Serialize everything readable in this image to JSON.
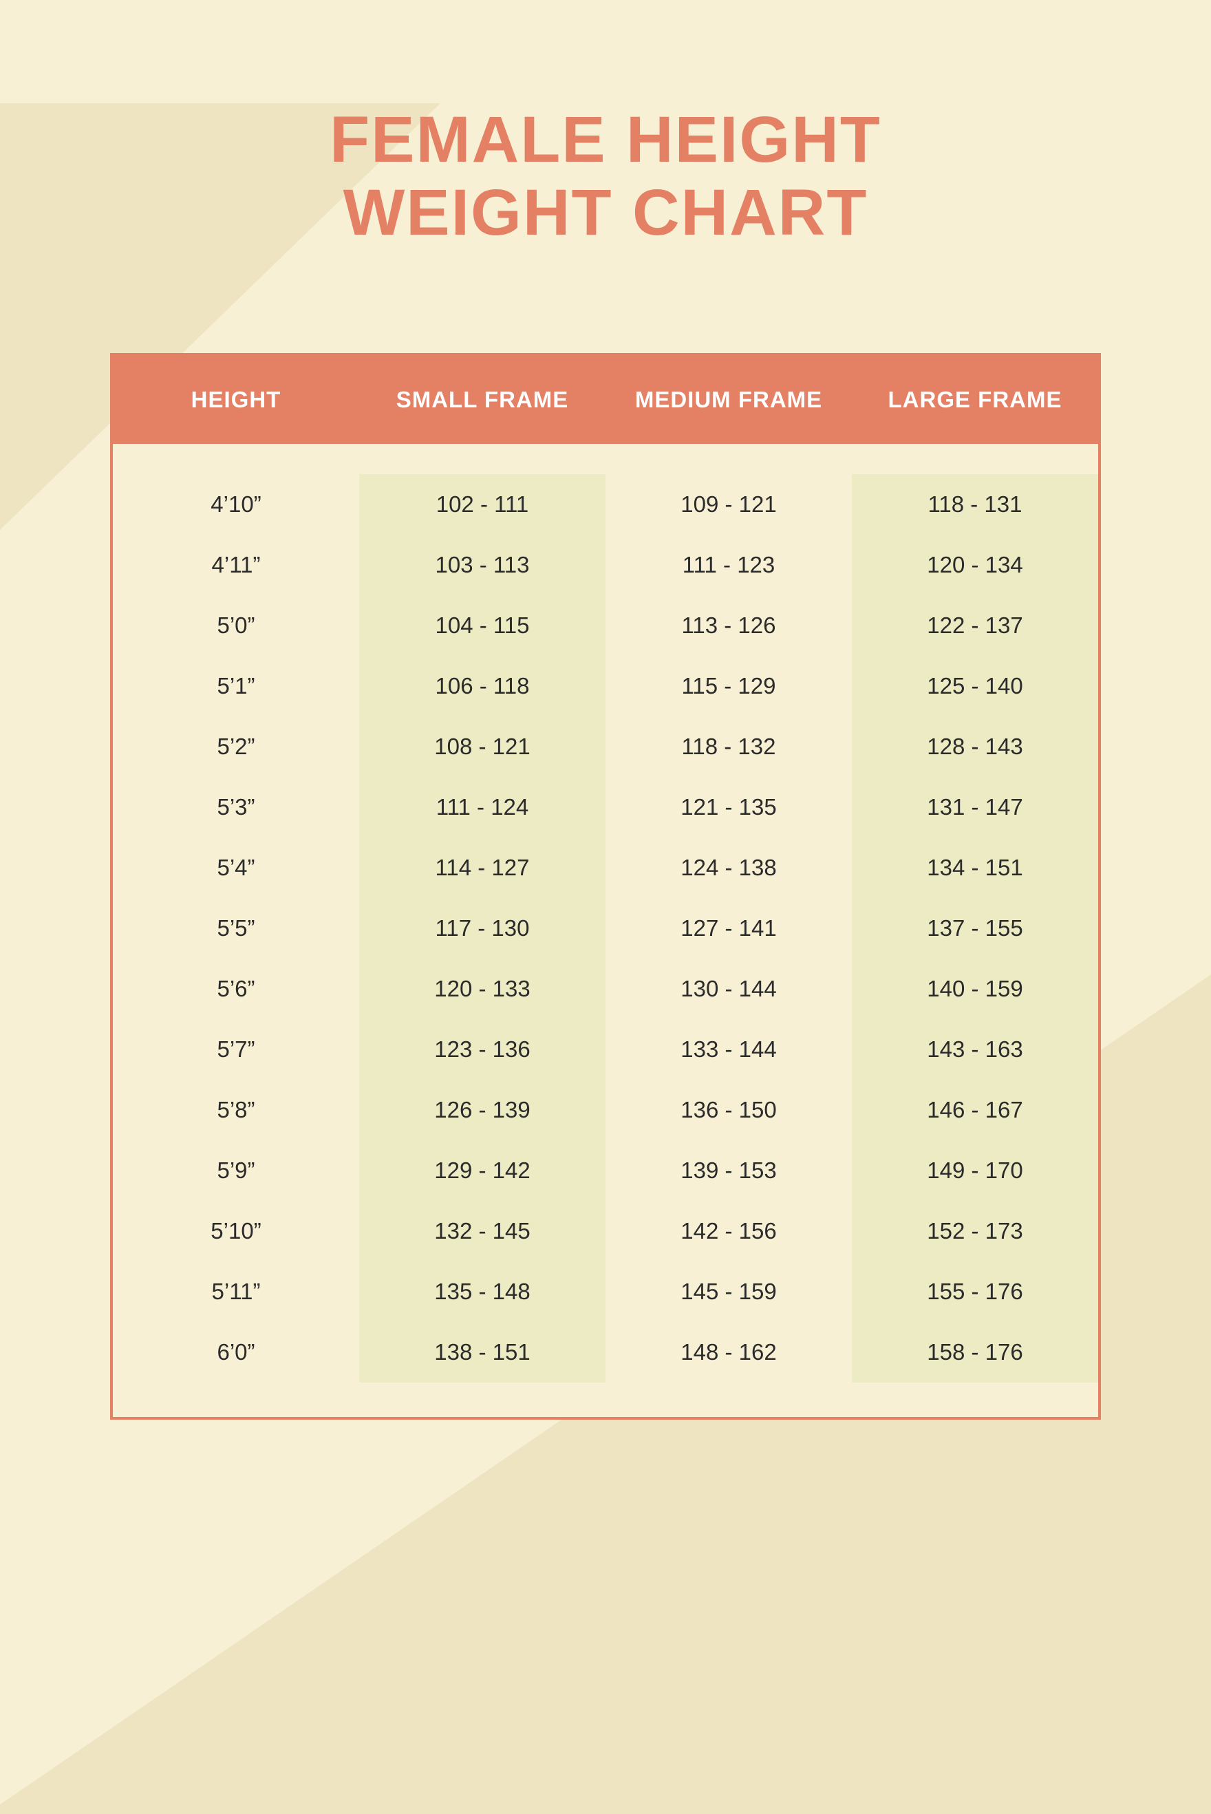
{
  "title_line1": "FEMALE HEIGHT",
  "title_line2": "WEIGHT CHART",
  "colors": {
    "page_bg": "#f7f0d4",
    "triangle_bg": "#eee4c1",
    "accent": "#e48165",
    "header_text": "#ffffff",
    "body_text": "#2b2b2b",
    "shade_col_bg": "#ecebc4"
  },
  "typography": {
    "title_fontsize": 95,
    "title_fontweight": 800,
    "header_fontsize": 33,
    "header_fontweight": 700,
    "body_fontsize": 33,
    "body_fontweight": 500
  },
  "table": {
    "type": "table",
    "columns": [
      "HEIGHT",
      "SMALL FRAME",
      "MEDIUM FRAME",
      "LARGE FRAME"
    ],
    "column_shaded": [
      false,
      true,
      false,
      true
    ],
    "rows": [
      [
        "4’10”",
        "102 - 111",
        "109 - 121",
        "118 - 131"
      ],
      [
        "4’11”",
        "103 - 113",
        "111 - 123",
        "120 - 134"
      ],
      [
        "5’0”",
        "104 - 115",
        "113 - 126",
        "122 - 137"
      ],
      [
        "5’1”",
        "106 - 118",
        "115 - 129",
        "125 - 140"
      ],
      [
        "5’2”",
        "108 - 121",
        "118 - 132",
        "128 - 143"
      ],
      [
        "5’3”",
        "111 - 124",
        "121 - 135",
        "131 - 147"
      ],
      [
        "5’4”",
        "114 - 127",
        "124 - 138",
        "134 - 151"
      ],
      [
        "5’5”",
        "117 - 130",
        "127 - 141",
        "137 - 155"
      ],
      [
        "5’6”",
        "120 - 133",
        "130 - 144",
        "140 - 159"
      ],
      [
        "5’7”",
        "123 - 136",
        "133 - 144",
        "143 - 163"
      ],
      [
        "5’8”",
        "126 - 139",
        "136 - 150",
        "146 - 167"
      ],
      [
        "5’9”",
        "129 - 142",
        "139 - 153",
        "149 - 170"
      ],
      [
        "5’10”",
        "132 - 145",
        "142 - 156",
        "152 - 173"
      ],
      [
        "5’11”",
        "135 - 148",
        "145 - 159",
        "155 - 176"
      ],
      [
        "6’0”",
        "138 - 151",
        "148 - 162",
        "158 - 176"
      ]
    ]
  }
}
